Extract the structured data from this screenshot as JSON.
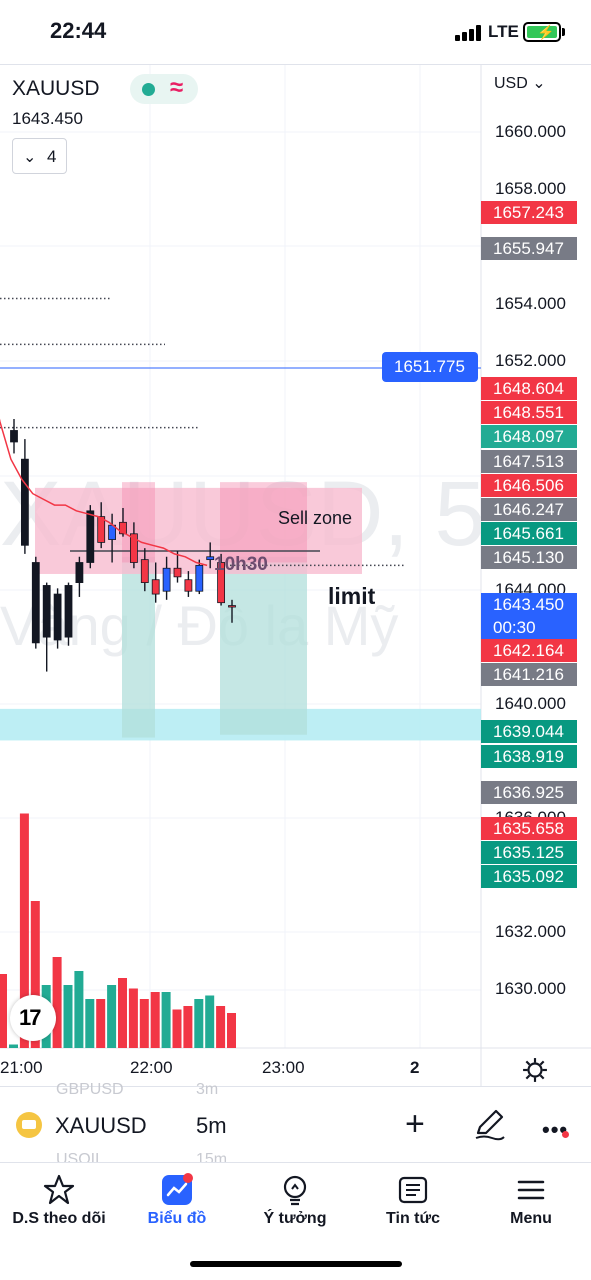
{
  "status_bar": {
    "time": "22:44",
    "network": "LTE"
  },
  "header": {
    "symbol": "XAUUSD",
    "last_price": "1643.450",
    "collapse_count": "4",
    "currency": "USD",
    "accent_color": "#2962ff"
  },
  "watermark": {
    "line1": "XAUUSD, 5",
    "line2": "Vàng / Đô la Mỹ"
  },
  "annotations": {
    "sell_zone": "Sell zone",
    "time_note": "10h30",
    "limit": "limit"
  },
  "price_axis": {
    "ticks": [
      "1660.000",
      "1658.000",
      "1654.000",
      "1652.000",
      "1644.000",
      "1640.000",
      "1636.000",
      "1632.000",
      "1630.000"
    ],
    "badges": [
      {
        "value": "1657.243",
        "color": "red"
      },
      {
        "value": "1655.947",
        "color": "gray"
      },
      {
        "value": "1651.775",
        "color": "blue"
      },
      {
        "value": "1648.604",
        "color": "red"
      },
      {
        "value": "1648.551",
        "color": "red"
      },
      {
        "value": "1648.097",
        "color": "green"
      },
      {
        "value": "1647.513",
        "color": "gray"
      },
      {
        "value": "1646.506",
        "color": "red"
      },
      {
        "value": "1646.247",
        "color": "gray"
      },
      {
        "value": "1645.661",
        "color": "dgreen"
      },
      {
        "value": "1645.130",
        "color": "gray"
      },
      {
        "value": "1643.450",
        "color": "blue",
        "countdown": "00:30"
      },
      {
        "value": "1642.164",
        "color": "red"
      },
      {
        "value": "1641.216",
        "color": "gray"
      },
      {
        "value": "1639.044",
        "color": "dgreen"
      },
      {
        "value": "1638.919",
        "color": "dgreen"
      },
      {
        "value": "1636.925",
        "color": "gray"
      },
      {
        "value": "1635.658",
        "color": "red"
      },
      {
        "value": "1635.125",
        "color": "dgreen"
      },
      {
        "value": "1635.092",
        "color": "dgreen"
      }
    ]
  },
  "time_axis": {
    "labels": [
      "21:00",
      "22:00",
      "23:00",
      "2"
    ]
  },
  "chart_data": {
    "type": "candlestick",
    "timeframe": "5m",
    "candles": [
      {
        "o": 1649.6,
        "h": 1650.0,
        "l": 1648.8,
        "c": 1649.2
      },
      {
        "o": 1648.6,
        "h": 1649.3,
        "l": 1645.3,
        "c": 1645.6
      },
      {
        "o": 1645.0,
        "h": 1645.2,
        "l": 1642.0,
        "c": 1642.2
      },
      {
        "o": 1642.4,
        "h": 1644.3,
        "l": 1641.2,
        "c": 1644.2
      },
      {
        "o": 1643.9,
        "h": 1644.1,
        "l": 1642.0,
        "c": 1642.3
      },
      {
        "o": 1642.4,
        "h": 1644.3,
        "l": 1642.1,
        "c": 1644.2
      },
      {
        "o": 1644.3,
        "h": 1645.2,
        "l": 1643.8,
        "c": 1645.0
      },
      {
        "o": 1645.0,
        "h": 1647.0,
        "l": 1644.8,
        "c": 1646.8
      },
      {
        "o": 1646.6,
        "h": 1647.1,
        "l": 1645.5,
        "c": 1645.7
      },
      {
        "o": 1645.8,
        "h": 1646.7,
        "l": 1645.0,
        "c": 1646.3
      },
      {
        "o": 1646.4,
        "h": 1646.9,
        "l": 1645.9,
        "c": 1646.0
      },
      {
        "o": 1646.0,
        "h": 1646.4,
        "l": 1644.8,
        "c": 1645.0
      },
      {
        "o": 1645.1,
        "h": 1645.5,
        "l": 1644.0,
        "c": 1644.3
      },
      {
        "o": 1644.4,
        "h": 1645.0,
        "l": 1643.6,
        "c": 1643.9
      },
      {
        "o": 1644.0,
        "h": 1645.2,
        "l": 1643.7,
        "c": 1644.8
      },
      {
        "o": 1644.8,
        "h": 1645.4,
        "l": 1644.3,
        "c": 1644.5
      },
      {
        "o": 1644.4,
        "h": 1644.7,
        "l": 1643.8,
        "c": 1644.0
      },
      {
        "o": 1644.0,
        "h": 1645.1,
        "l": 1643.9,
        "c": 1644.9
      },
      {
        "o": 1645.1,
        "h": 1645.7,
        "l": 1644.8,
        "c": 1645.2
      },
      {
        "o": 1645.0,
        "h": 1645.3,
        "l": 1643.5,
        "c": 1643.6
      },
      {
        "o": 1643.5,
        "h": 1643.7,
        "l": 1642.9,
        "c": 1643.45
      }
    ],
    "volume": [
      1,
      67,
      42,
      18,
      26,
      18,
      22,
      14,
      14,
      18,
      20,
      17,
      14,
      16,
      16,
      11,
      12,
      14,
      15,
      12,
      10
    ],
    "volume_up": [
      true,
      false,
      false,
      true,
      false,
      true,
      true,
      true,
      false,
      true,
      false,
      false,
      false,
      false,
      true,
      false,
      false,
      true,
      true,
      false,
      false
    ],
    "moving_average": [
      1651.5,
      1649.9,
      1648.6,
      1647.9,
      1647.4,
      1647.2,
      1647.0,
      1647.0,
      1646.8,
      1646.7,
      1646.6,
      1646.4,
      1646.1,
      1645.9,
      1645.7,
      1645.6,
      1645.5,
      1645.3,
      1645.2,
      1645.0,
      1644.9
    ],
    "ylim": [
      1628.0,
      1661.5
    ],
    "horizontal_lines": [
      1654.2,
      1652.6,
      1649.7,
      1644.9
    ],
    "price_line": 1651.775,
    "limit_level": 1645.4,
    "sell_zone": [
      1644.6,
      1647.6
    ],
    "tp_zone": [
      1638.8,
      1639.9
    ],
    "colors": {
      "up": "#2962ff",
      "down": "#f23645",
      "vol_up": "#22ab94",
      "vol_down": "#f23645",
      "ma": "#f23645"
    }
  },
  "symbol_bar": {
    "symbol": "XAUUSD",
    "interval": "5m",
    "ghost_top_symbol": "GBPUSD",
    "ghost_top_interval": "3m",
    "ghost_bottom_symbol": "USOIL",
    "ghost_bottom_interval": "15m"
  },
  "tabs": [
    {
      "label": "D.S theo dõi",
      "icon": "star-icon"
    },
    {
      "label": "Biểu đồ",
      "icon": "chart-icon",
      "active": true
    },
    {
      "label": "Ý tưởng",
      "icon": "lightbulb-icon"
    },
    {
      "label": "Tin tức",
      "icon": "news-icon"
    },
    {
      "label": "Menu",
      "icon": "menu-icon"
    }
  ]
}
